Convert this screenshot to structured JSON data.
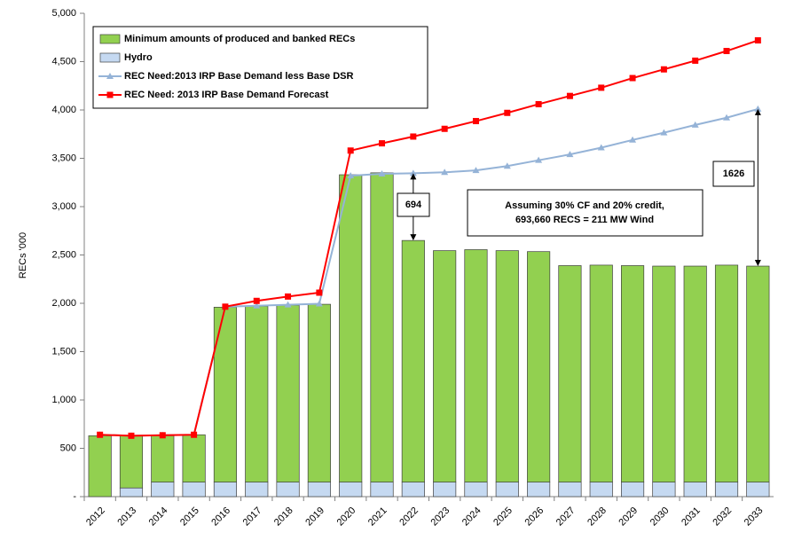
{
  "chart_data": {
    "type": "bar",
    "y_label": "RECs '000",
    "categories": [
      "2012",
      "2013",
      "2014",
      "2015",
      "2016",
      "2017",
      "2018",
      "2019",
      "2020",
      "2021",
      "2022",
      "2023",
      "2024",
      "2025",
      "2026",
      "2027",
      "2028",
      "2029",
      "2030",
      "2031",
      "2032",
      "2033"
    ],
    "series": [
      {
        "name": "Hydro",
        "type": "bar",
        "color": "#c5d9f1",
        "values": [
          0,
          90,
          150,
          150,
          150,
          150,
          150,
          150,
          150,
          150,
          150,
          150,
          150,
          150,
          150,
          150,
          150,
          150,
          150,
          150,
          150,
          150
        ]
      },
      {
        "name": "Minimum amounts of produced and banked RECs",
        "type": "bar",
        "color": "#92d050",
        "values": [
          630,
          540,
          480,
          490,
          1810,
          1820,
          1830,
          1840,
          3180,
          3200,
          2500,
          2395,
          2405,
          2395,
          2385,
          2240,
          2245,
          2240,
          2235,
          2235,
          2245,
          2235
        ]
      },
      {
        "name": "REC Need:2013 IRP Base Demand less Base DSR",
        "type": "line",
        "marker": "triangle",
        "color": "#95b3d7",
        "values": [
          640,
          630,
          635,
          640,
          1965,
          1975,
          1985,
          1995,
          3320,
          3340,
          3345,
          3355,
          3375,
          3420,
          3480,
          3540,
          3610,
          3690,
          3765,
          3845,
          3920,
          4010
        ]
      },
      {
        "name": "REC Need: 2013 IRP Base Demand Forecast",
        "type": "line",
        "marker": "square",
        "color": "#ff0000",
        "values": [
          640,
          630,
          635,
          640,
          1965,
          2025,
          2070,
          2110,
          3580,
          3655,
          3725,
          3805,
          3885,
          3970,
          4060,
          4145,
          4230,
          4330,
          4420,
          4510,
          4610,
          4720
        ]
      }
    ],
    "legend_order": [
      1,
      0,
      2,
      3
    ],
    "legend": "upper left",
    "ylim": [
      0,
      5000
    ],
    "yticks": [
      {
        "value": 0,
        "label": "-"
      },
      {
        "value": 500,
        "label": "500"
      },
      {
        "value": 1000,
        "label": "1,000"
      },
      {
        "value": 1500,
        "label": "1,500"
      },
      {
        "value": 2000,
        "label": "2,000"
      },
      {
        "value": 2500,
        "label": "2,500"
      },
      {
        "value": 3000,
        "label": "3,000"
      },
      {
        "value": 3500,
        "label": "3,500"
      },
      {
        "value": 4000,
        "label": "4,000"
      },
      {
        "value": 4500,
        "label": "4,500"
      },
      {
        "value": 5000,
        "label": "5,000"
      }
    ],
    "annotations": [
      "694",
      "1626",
      [
        "Assuming 30% CF and 20% credit,",
        "693,660 RECS = 211 MW Wind"
      ]
    ]
  }
}
